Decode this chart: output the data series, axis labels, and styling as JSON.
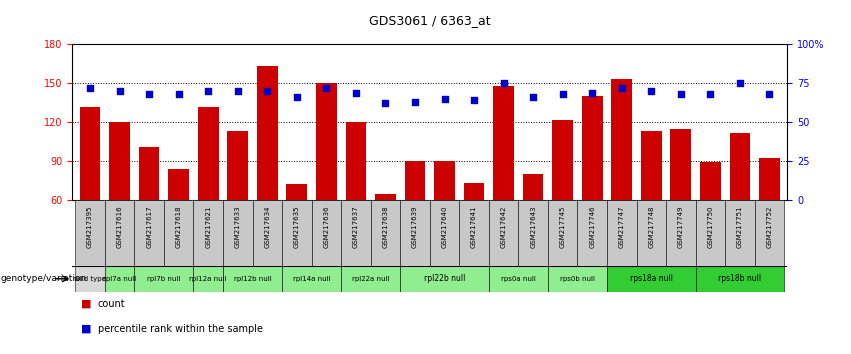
{
  "title": "GDS3061 / 6363_at",
  "samples": [
    "GSM217395",
    "GSM217616",
    "GSM217617",
    "GSM217618",
    "GSM217621",
    "GSM217633",
    "GSM217634",
    "GSM217635",
    "GSM217636",
    "GSM217637",
    "GSM217638",
    "GSM217639",
    "GSM217640",
    "GSM217641",
    "GSM217642",
    "GSM217643",
    "GSM217745",
    "GSM217746",
    "GSM217747",
    "GSM217748",
    "GSM217749",
    "GSM217750",
    "GSM217751",
    "GSM217752"
  ],
  "counts": [
    132,
    120,
    101,
    84,
    132,
    113,
    163,
    72,
    150,
    120,
    65,
    90,
    90,
    73,
    148,
    80,
    122,
    140,
    153,
    113,
    115,
    89,
    112,
    92
  ],
  "percentile": [
    72,
    70,
    68,
    68,
    70,
    70,
    70,
    66,
    72,
    69,
    62,
    63,
    65,
    64,
    75,
    66,
    68,
    69,
    72,
    70,
    68,
    68,
    75,
    68
  ],
  "geno_groups": [
    {
      "label": "wild type",
      "start": 0,
      "end": 1,
      "color": "#d8d8d8"
    },
    {
      "label": "rpl7a null",
      "start": 1,
      "end": 2,
      "color": "#90ee90"
    },
    {
      "label": "rpl7b null",
      "start": 2,
      "end": 4,
      "color": "#90ee90"
    },
    {
      "label": "rpl12a null",
      "start": 4,
      "end": 5,
      "color": "#90ee90"
    },
    {
      "label": "rpl12b null",
      "start": 5,
      "end": 7,
      "color": "#90ee90"
    },
    {
      "label": "rpl14a null",
      "start": 7,
      "end": 9,
      "color": "#90ee90"
    },
    {
      "label": "rpl22a null",
      "start": 9,
      "end": 11,
      "color": "#90ee90"
    },
    {
      "label": "rpl22b null",
      "start": 11,
      "end": 14,
      "color": "#90ee90"
    },
    {
      "label": "rps0a null",
      "start": 14,
      "end": 16,
      "color": "#90ee90"
    },
    {
      "label": "rps0b null",
      "start": 16,
      "end": 18,
      "color": "#90ee90"
    },
    {
      "label": "rps18a null",
      "start": 18,
      "end": 21,
      "color": "#32cd32"
    },
    {
      "label": "rps18b null",
      "start": 21,
      "end": 24,
      "color": "#32cd32"
    }
  ],
  "ylim_left": [
    60,
    180
  ],
  "ylim_right": [
    0,
    100
  ],
  "yticks_left": [
    60,
    90,
    120,
    150,
    180
  ],
  "yticks_right": [
    0,
    25,
    50,
    75,
    100
  ],
  "ytick_labels_right": [
    "0",
    "25",
    "50",
    "75",
    "100%"
  ],
  "bar_color": "#cc0000",
  "dot_color": "#0000cc",
  "bar_bottom": 60,
  "sample_box_color": "#c8c8c8"
}
